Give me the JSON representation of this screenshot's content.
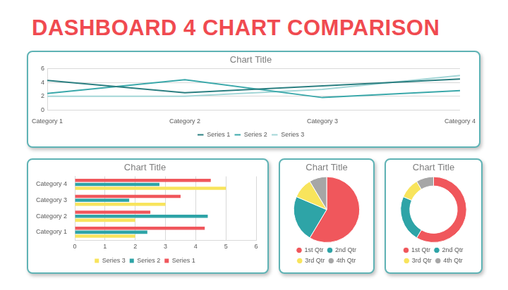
{
  "title": "DASHBOARD 4 CHART COMPARISON",
  "chart_data": [
    {
      "type": "line",
      "title": "Chart Title",
      "categories": [
        "Category 1",
        "Category 2",
        "Category 3",
        "Category 4"
      ],
      "series": [
        {
          "name": "Series 1",
          "color": "#2b7f81",
          "values": [
            4.3,
            2.5,
            3.5,
            4.5
          ]
        },
        {
          "name": "Series 2",
          "color": "#3aa8aa",
          "values": [
            2.4,
            4.4,
            1.8,
            2.8
          ]
        },
        {
          "name": "Series 3",
          "color": "#a3d6d7",
          "values": [
            2,
            2,
            3,
            5
          ]
        }
      ],
      "ylim": [
        0,
        6
      ],
      "yticks": [
        0,
        2,
        4,
        6
      ],
      "grid": true,
      "legend": "bottom"
    },
    {
      "type": "bar",
      "title": "Chart Title",
      "orientation": "horizontal",
      "categories": [
        "Category 1",
        "Category 2",
        "Category 3",
        "Category 4"
      ],
      "series": [
        {
          "name": "Series 1",
          "color": "#f0575c",
          "values": [
            4.3,
            2.5,
            3.5,
            4.5
          ]
        },
        {
          "name": "Series 2",
          "color": "#2ea4a7",
          "values": [
            2.4,
            4.4,
            1.8,
            2.8
          ]
        },
        {
          "name": "Series 3",
          "color": "#f8e45c",
          "values": [
            2,
            2,
            3,
            5
          ]
        }
      ],
      "xlim": [
        0,
        6
      ],
      "xticks": [
        0,
        1,
        2,
        3,
        4,
        5,
        6
      ],
      "grid": true,
      "legend": "bottom"
    },
    {
      "type": "pie",
      "title": "Chart Title",
      "categories": [
        "1st Qtr",
        "2nd Qtr",
        "3rd Qtr",
        "4th Qtr"
      ],
      "values": [
        8.2,
        3.2,
        1.4,
        1.2
      ],
      "colors": [
        "#f0575c",
        "#2ea4a7",
        "#f8e45c",
        "#a6a6a6"
      ],
      "legend": "bottom"
    },
    {
      "type": "doughnut",
      "title": "Chart Title",
      "categories": [
        "1st Qtr",
        "2nd Qtr",
        "3rd Qtr",
        "4th Qtr"
      ],
      "values": [
        8.2,
        3.2,
        1.4,
        1.2
      ],
      "colors": [
        "#f0575c",
        "#2ea4a7",
        "#f8e45c",
        "#a6a6a6"
      ],
      "legend": "bottom"
    }
  ]
}
